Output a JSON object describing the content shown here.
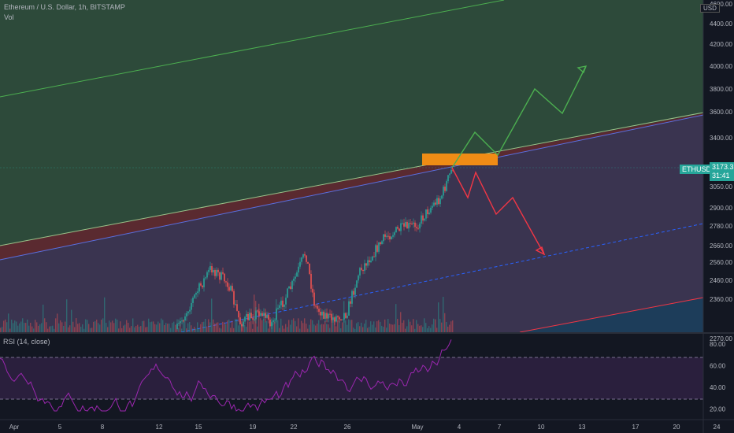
{
  "header": {
    "title": "Ethereum / U.S. Dollar, 1h, BITSTAMP",
    "vol_label": "Vol",
    "rsi_label": "RSI (14, close)",
    "currency": "USD"
  },
  "price_tag": {
    "symbol": "ETHUSD",
    "price": "3173.35",
    "countdown": "31:41"
  },
  "colors": {
    "background": "#131722",
    "green_zone": "#2d4a3a",
    "purple_zone": "#3a3450",
    "red_band": "#5a2a30",
    "blue_zone": "#1d3d5a",
    "orange_box": "#ef8c15",
    "up_path": "#4caf50",
    "down_path": "#f23645",
    "rsi_line": "#9c27b0",
    "candle_up": "#26a69a",
    "candle_down": "#ef5350"
  },
  "chart_data": {
    "type": "candlestick",
    "main_axis": {
      "y_ticks": [
        2270,
        2360,
        2460,
        2560,
        2660,
        2780,
        2900,
        3050,
        3400,
        3600,
        3800,
        4000,
        4200,
        4400,
        4600
      ],
      "y_tick_labels": [
        "2270.00",
        "2360.00",
        "2460.00",
        "2560.00",
        "2660.00",
        "2780.00",
        "2900.00",
        "3050.00",
        "3400.00",
        "3600.00",
        "3800.00",
        "4000.00",
        "4200.00",
        "4400.00",
        "4600.00"
      ],
      "current_price": 3173.35
    },
    "x_ticks": [
      "Apr",
      "5",
      "8",
      "12",
      "15",
      "19",
      "22",
      "26",
      "May",
      "4",
      "7",
      "10",
      "13",
      "17",
      "20",
      "24"
    ],
    "rsi_axis": {
      "y_ticks": [
        20,
        40,
        60,
        80
      ],
      "y_tick_labels": [
        "20.00",
        "40.00",
        "60.00",
        "80.00"
      ],
      "bands": [
        30,
        70
      ]
    },
    "projection_up": [
      3173,
      3440,
      3260,
      3800,
      3600,
      4000
    ],
    "projection_down": [
      3173,
      2980,
      3200,
      2850,
      2960,
      2600
    ],
    "channel_resistance": [
      2540,
      3600
    ],
    "channel_support": [
      2200,
      2900
    ]
  }
}
